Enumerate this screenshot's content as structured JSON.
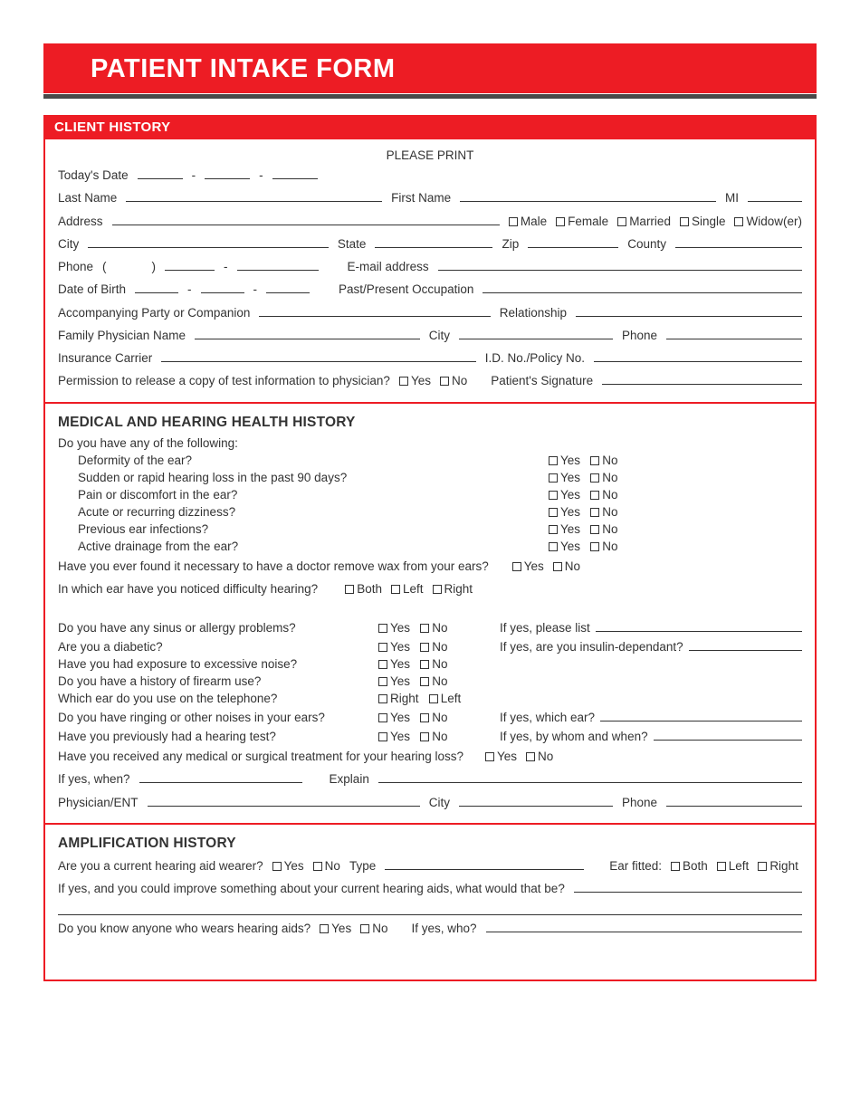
{
  "colors": {
    "accent": "#ed1c24",
    "underline_gray": "#4a4a4a",
    "text": "#333333",
    "page_bg": "#ffffff"
  },
  "title": "PATIENT INTAKE FORM",
  "section_client_history": "CLIENT HISTORY",
  "please_print": "PLEASE PRINT",
  "labels": {
    "todays_date": "Today's Date",
    "last_name": "Last Name",
    "first_name": "First Name",
    "mi": "MI",
    "address": "Address",
    "male": "Male",
    "female": "Female",
    "married": "Married",
    "single": "Single",
    "widower": "Widow(er)",
    "city": "City",
    "state": "State",
    "zip": "Zip",
    "county": "County",
    "phone": "Phone",
    "email": "E-mail address",
    "dob": "Date of Birth",
    "occupation": "Past/Present Occupation",
    "companion": "Accompanying Party or Companion",
    "relationship": "Relationship",
    "family_physician": "Family Physician Name",
    "insurance": "Insurance Carrier",
    "policy": "I.D. No./Policy No.",
    "permission": "Permission to release a copy of test information to physician?",
    "signature": "Patient's Signature",
    "yes": "Yes",
    "no": "No",
    "both": "Both",
    "left": "Left",
    "right": "Right",
    "paren_open": "(",
    "paren_close": ")",
    "dash": "-"
  },
  "medical": {
    "heading": "MEDICAL AND HEARING HEALTH HISTORY",
    "intro": "Do you have any of the following:",
    "items": [
      "Deformity of the ear?",
      "Sudden or rapid hearing loss in the past 90 days?",
      "Pain or discomfort in the ear?",
      "Acute or recurring dizziness?",
      "Previous ear infections?",
      "Active drainage from the ear?"
    ],
    "wax": "Have you ever found it necessary to have a doctor remove wax from your ears?",
    "which_ear": "In which ear have you noticed difficulty hearing?",
    "q2": [
      {
        "q": "Do you have any sinus or allergy problems?",
        "tail": "If yes, please list"
      },
      {
        "q": "Are you a diabetic?",
        "tail": "If yes, are you insulin-dependant?"
      },
      {
        "q": "Have you had exposure to excessive noise?",
        "tail": ""
      },
      {
        "q": "Do you have a history of firearm use?",
        "tail": ""
      }
    ],
    "phone_ear": "Which ear do you use on the telephone?",
    "ringing": {
      "q": "Do you have ringing or other noises in your ears?",
      "tail": "If yes, which ear?"
    },
    "prev_test": {
      "q": "Have you previously had a hearing test?",
      "tail": "If yes, by whom and when?"
    },
    "treatment": "Have you received any medical or surgical treatment for your hearing loss?",
    "if_yes_when": "If yes, when?",
    "explain": "Explain",
    "physician_ent": "Physician/ENT"
  },
  "amp": {
    "heading": "AMPLIFICATION HISTORY",
    "wearer": "Are you a current hearing aid wearer?",
    "type": "Type",
    "ear_fitted": "Ear fitted:",
    "improve": "If yes, and you could improve something about your current hearing aids, what would that be?",
    "know_anyone": "Do you know anyone who wears hearing aids?",
    "if_yes_who": "If yes, who?"
  }
}
